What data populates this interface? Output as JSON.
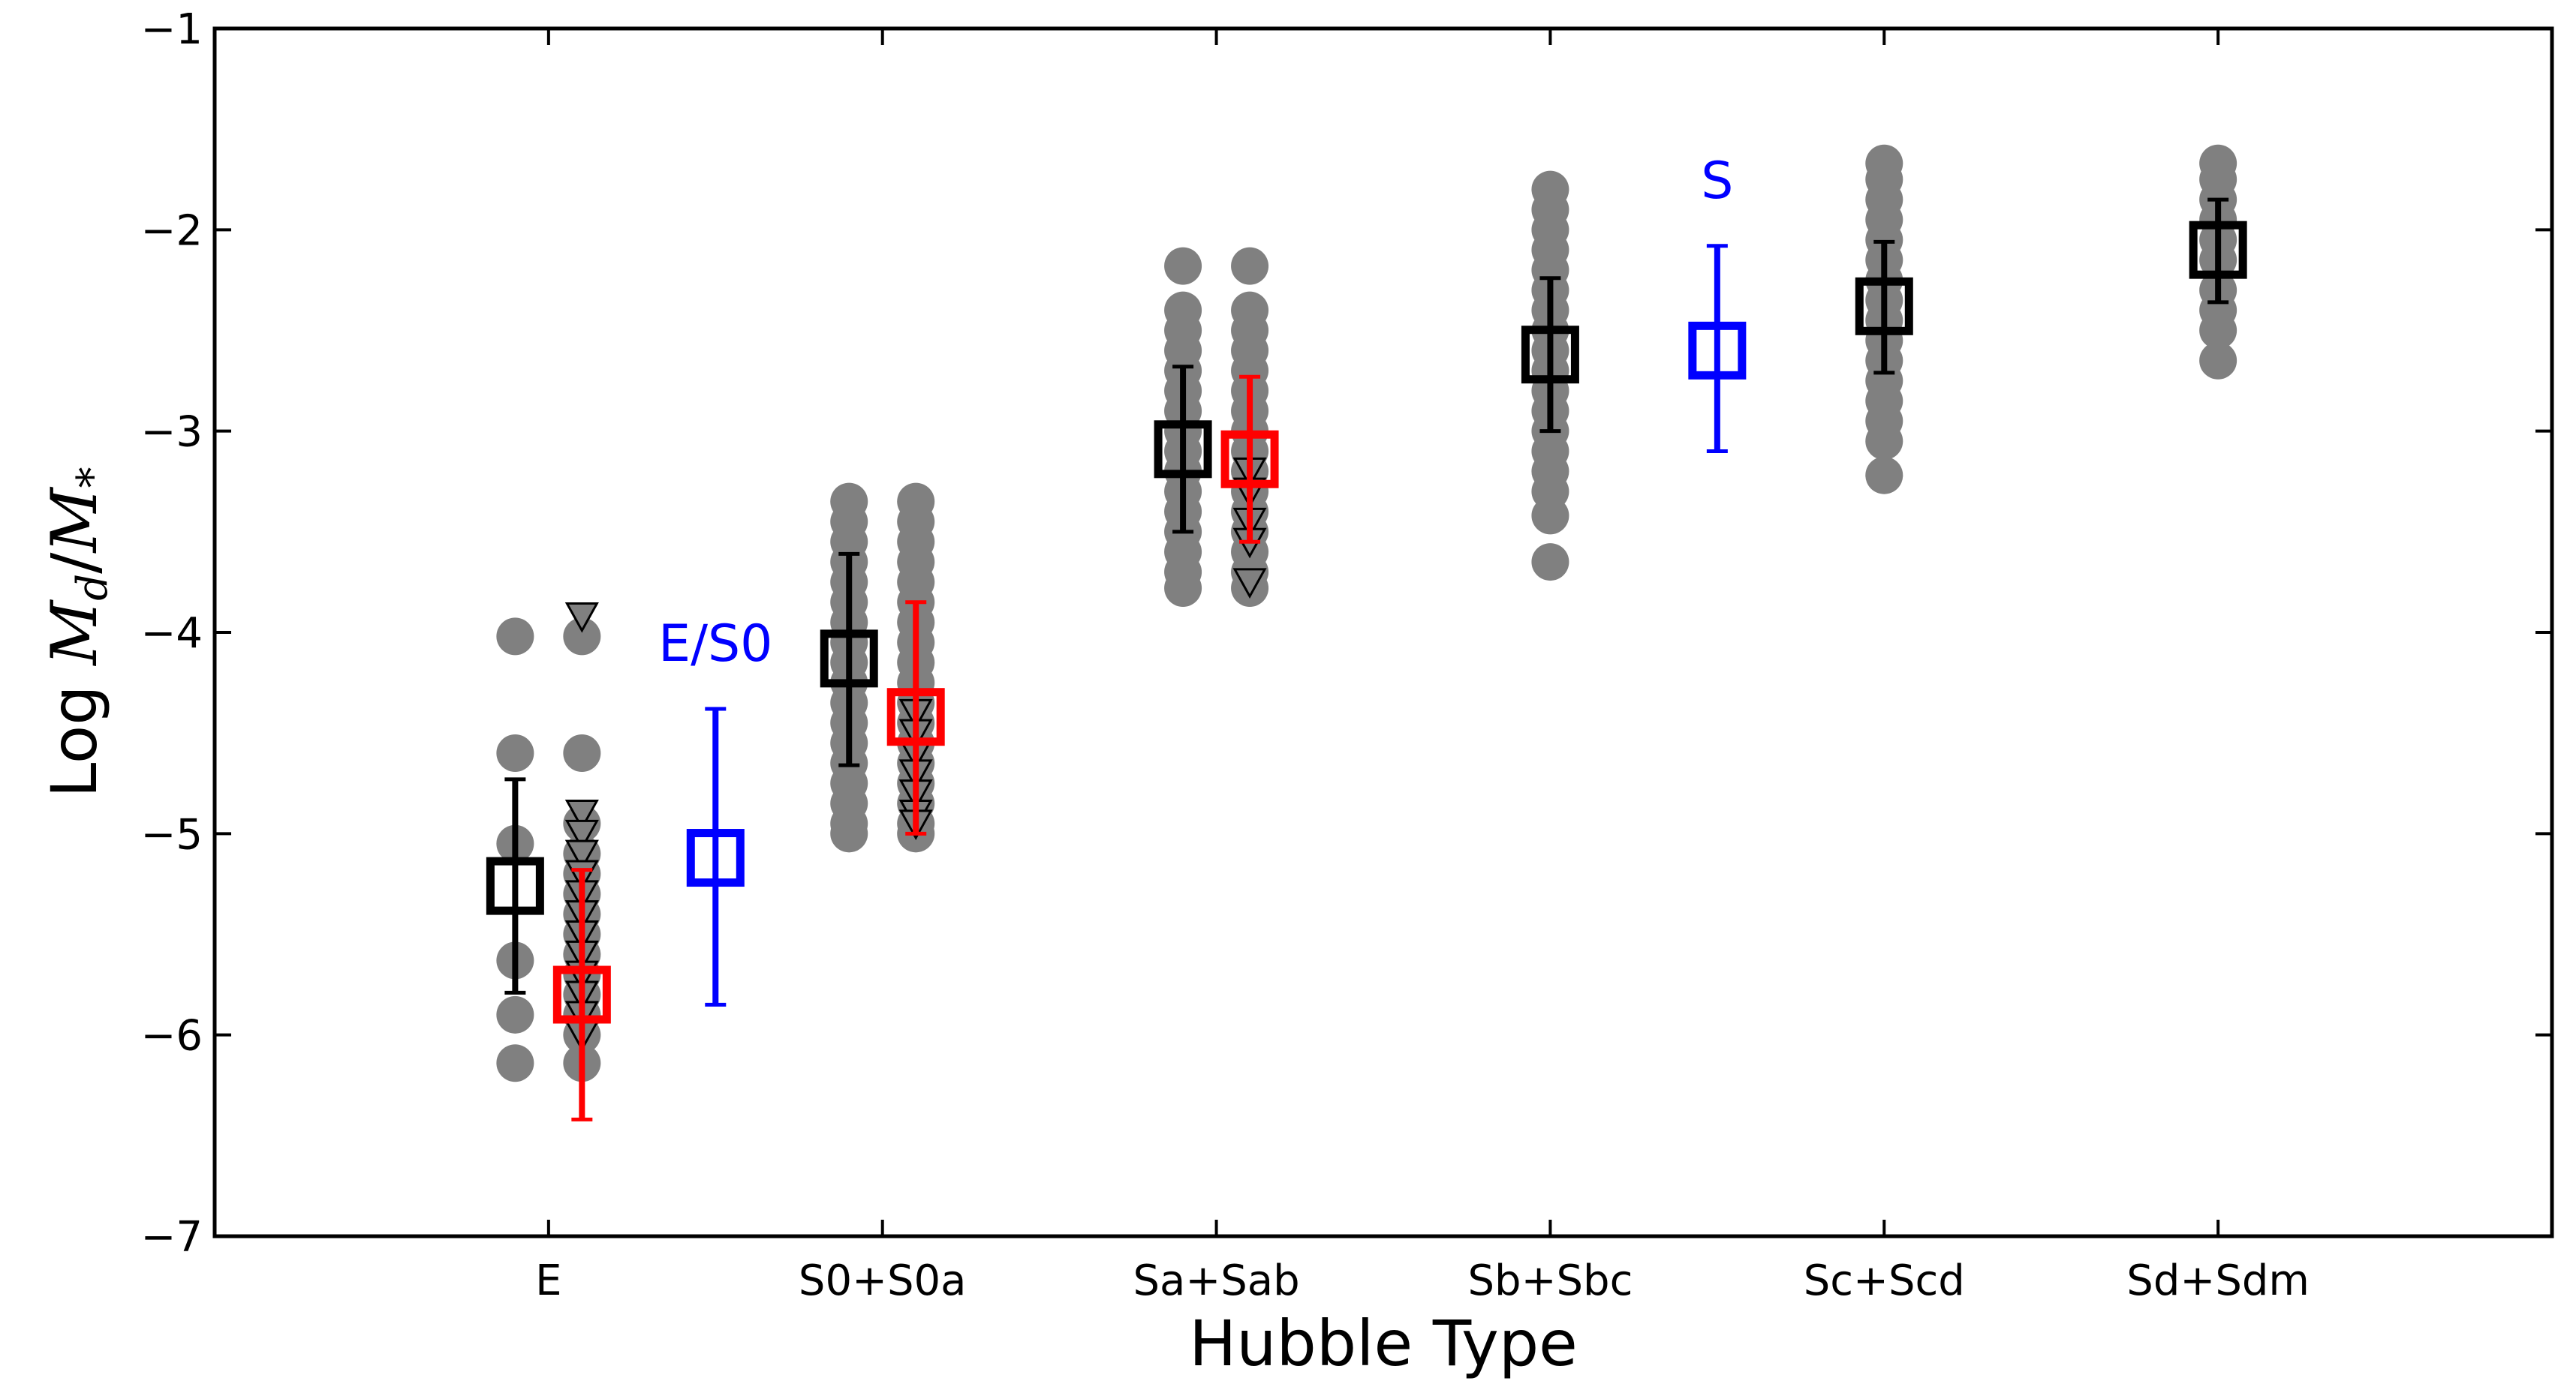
{
  "chart_data": {
    "type": "scatter",
    "xlabel": "Hubble Type",
    "ylabel_prefix": "Log ",
    "ylabel_math": {
      "numerator": "M",
      "numerator_sub": "d",
      "slash": "/",
      "denominator": "M",
      "denominator_sub": "*"
    },
    "categories": [
      "E",
      "S0+S0a",
      "Sa+Sab",
      "Sb+Sbc",
      "Sc+Scd",
      "Sd+Sdm"
    ],
    "y_ticks": [
      "−1",
      "−2",
      "−3",
      "−4",
      "−5",
      "−6",
      "−7"
    ],
    "ylim": [
      -7,
      -1
    ],
    "grid": false,
    "colors": {
      "points": "#808080",
      "detections": "#000000",
      "upper_limits": "#ff0000",
      "comparison": "#0000ff"
    },
    "gray_points": [
      {
        "x": 0.9,
        "y": [
          -4.02,
          -4.6,
          -5.05,
          -5.63,
          -5.9,
          -6.14
        ]
      },
      {
        "x": 1.1,
        "y": [
          -4.02,
          -4.6,
          -4.95,
          -5.1,
          -5.2,
          -5.3,
          -5.4,
          -5.5,
          -5.6,
          -5.7,
          -5.8,
          -5.9,
          -6.0,
          -6.14
        ]
      },
      {
        "x": 1.9,
        "y": [
          -3.35,
          -3.45,
          -3.55,
          -3.65,
          -3.75,
          -3.85,
          -3.95,
          -4.05,
          -4.15,
          -4.25,
          -4.35,
          -4.45,
          -4.55,
          -4.65,
          -4.75,
          -4.85,
          -4.95,
          -5.0
        ]
      },
      {
        "x": 2.1,
        "y": [
          -3.35,
          -3.45,
          -3.55,
          -3.65,
          -3.75,
          -3.85,
          -3.95,
          -4.05,
          -4.15,
          -4.25,
          -4.35,
          -4.45,
          -4.55,
          -4.65,
          -4.75,
          -4.85,
          -4.95,
          -5.0
        ]
      },
      {
        "x": 2.9,
        "y": [
          -2.18,
          -2.4,
          -2.5,
          -2.6,
          -2.7,
          -2.8,
          -2.9,
          -3.0,
          -3.1,
          -3.2,
          -3.3,
          -3.4,
          -3.5,
          -3.6,
          -3.7,
          -3.78
        ]
      },
      {
        "x": 3.1,
        "y": [
          -2.18,
          -2.4,
          -2.5,
          -2.6,
          -2.7,
          -2.8,
          -2.9,
          -3.0,
          -3.1,
          -3.2,
          -3.3,
          -3.4,
          -3.5,
          -3.6,
          -3.7,
          -3.78
        ]
      },
      {
        "x": 4.0,
        "y": [
          -1.8,
          -1.9,
          -2.0,
          -2.1,
          -2.2,
          -2.3,
          -2.4,
          -2.5,
          -2.6,
          -2.7,
          -2.8,
          -2.9,
          -3.0,
          -3.1,
          -3.2,
          -3.3,
          -3.42,
          -3.65
        ]
      },
      {
        "x": 5.0,
        "y": [
          -1.67,
          -1.75,
          -1.85,
          -1.95,
          -2.05,
          -2.15,
          -2.25,
          -2.35,
          -2.45,
          -2.55,
          -2.65,
          -2.75,
          -2.85,
          -2.95,
          -3.05,
          -3.22
        ]
      },
      {
        "x": 6.0,
        "y": [
          -1.67,
          -1.75,
          -1.85,
          -1.95,
          -2.05,
          -2.15,
          -2.3,
          -2.4,
          -2.5,
          -2.65
        ]
      }
    ],
    "upper_limit_markers": [
      {
        "x": 1.1,
        "y": [
          -3.92,
          -4.9,
          -5.0,
          -5.1,
          -5.2,
          -5.3,
          -5.4,
          -5.5,
          -5.6,
          -5.7,
          -5.8,
          -5.9,
          -6.0
        ]
      },
      {
        "x": 2.1,
        "y": [
          -4.4,
          -4.5,
          -4.6,
          -4.7,
          -4.8,
          -4.9,
          -4.95
        ]
      },
      {
        "x": 3.1,
        "y": [
          -3.2,
          -3.3,
          -3.45,
          -3.55,
          -3.75
        ]
      }
    ],
    "series": [
      {
        "role": "detections",
        "points": [
          {
            "x": 0.9,
            "y": -5.26,
            "low": -5.79,
            "high": -4.73
          },
          {
            "x": 1.9,
            "y": -4.13,
            "low": -4.66,
            "high": -3.61
          },
          {
            "x": 2.9,
            "y": -3.09,
            "low": -3.5,
            "high": -2.68
          },
          {
            "x": 4.0,
            "y": -2.62,
            "low": -3.0,
            "high": -2.24
          },
          {
            "x": 5.0,
            "y": -2.38,
            "low": -2.71,
            "high": -2.06
          },
          {
            "x": 6.0,
            "y": -2.1,
            "low": -2.36,
            "high": -1.85
          }
        ]
      },
      {
        "role": "upper_limits",
        "points": [
          {
            "x": 1.1,
            "y": -5.8,
            "low": -6.42,
            "high": -5.18
          },
          {
            "x": 2.1,
            "y": -4.42,
            "low": -5.0,
            "high": -3.85
          },
          {
            "x": 3.1,
            "y": -3.14,
            "low": -3.55,
            "high": -2.73
          }
        ]
      },
      {
        "role": "comparison",
        "points": [
          {
            "x": 1.5,
            "y": -5.12,
            "low": -5.85,
            "high": -4.38,
            "label": "E/S0"
          },
          {
            "x": 4.5,
            "y": -2.6,
            "low": -3.1,
            "high": -2.08,
            "label": "S"
          }
        ]
      }
    ]
  }
}
